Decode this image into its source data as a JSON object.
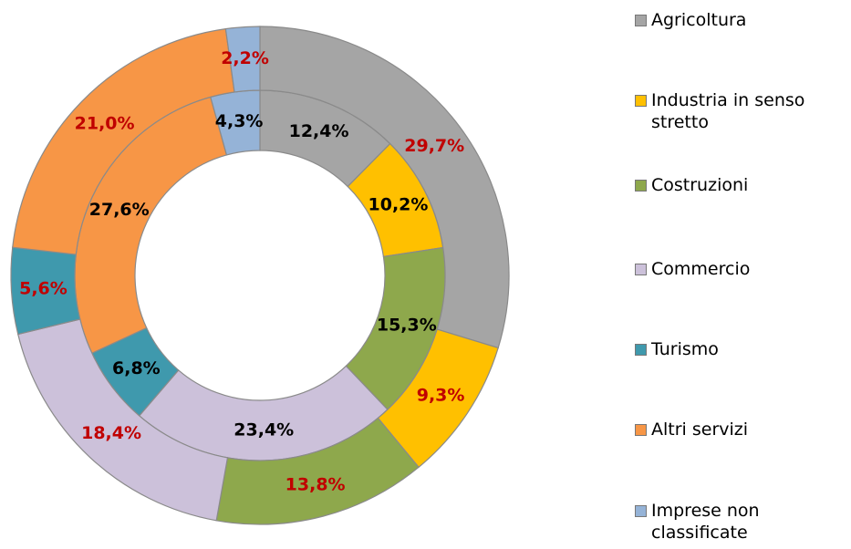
{
  "chart_data": {
    "type": "donut",
    "categories": [
      "Agricoltura",
      "Industria in senso stretto",
      "Costruzioni",
      "Commercio",
      "Turismo",
      "Altri servizi",
      "Imprese non classificate"
    ],
    "colors": [
      "#a5a5a5",
      "#ffc000",
      "#8ea84c",
      "#ccc1da",
      "#3f99ad",
      "#f79646",
      "#95b3d7"
    ],
    "series": [
      {
        "values": [
          12.4,
          10.2,
          15.3,
          23.4,
          6.8,
          27.6,
          4.3
        ],
        "value_labels": [
          "12,4%",
          "10,2%",
          "15,3%",
          "23,4%",
          "6,8%",
          "27,6%",
          "4,3%"
        ],
        "label_color": "#000000"
      },
      {
        "values": [
          29.7,
          9.3,
          13.8,
          18.4,
          5.6,
          21.0,
          2.2
        ],
        "value_labels": [
          "29,7%",
          "9,3%",
          "13,8%",
          "18,4%",
          "5,6%",
          "21,0%",
          "2,2%"
        ],
        "label_color": "#c00000"
      }
    ],
    "legend": "right"
  }
}
